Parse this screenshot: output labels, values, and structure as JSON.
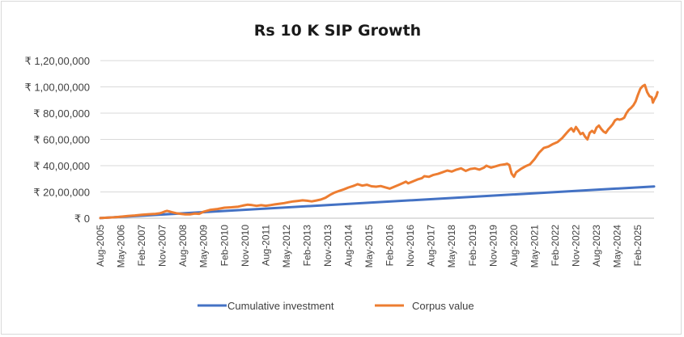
{
  "chart_data": {
    "type": "line",
    "title": "Rs 10 K SIP Growth",
    "xlabel": "",
    "ylabel": "",
    "ylim": [
      0,
      12000000
    ],
    "y_ticks": [
      {
        "value": 0,
        "label": "₹ 0"
      },
      {
        "value": 2000000,
        "label": "₹ 20,00,000"
      },
      {
        "value": 4000000,
        "label": "₹ 40,00,000"
      },
      {
        "value": 6000000,
        "label": "₹ 60,00,000"
      },
      {
        "value": 8000000,
        "label": "₹ 80,00,000"
      },
      {
        "value": 10000000,
        "label": "₹ 1,00,00,000"
      },
      {
        "value": 12000000,
        "label": "₹ 1,20,00,000"
      }
    ],
    "x_ticks": [
      "Aug-2005",
      "May-2006",
      "Feb-2007",
      "Nov-2007",
      "Aug-2008",
      "May-2009",
      "Feb-2010",
      "Nov-2010",
      "Aug-2011",
      "May-2012",
      "Feb-2013",
      "Nov-2013",
      "Aug-2014",
      "May-2015",
      "Feb-2016",
      "Nov-2016",
      "Aug-2017",
      "May-2018",
      "Feb-2019",
      "Nov-2019",
      "Aug-2020",
      "May-2021",
      "Feb-2022",
      "Nov-2022",
      "Aug-2023",
      "May-2024",
      "Feb-2025"
    ],
    "x_range_months": [
      0,
      241
    ],
    "legend_position": "bottom",
    "series": [
      {
        "name": "Cumulative investment",
        "color": "#4472c4",
        "points": [
          [
            0,
            10000
          ],
          [
            241,
            2420000
          ]
        ]
      },
      {
        "name": "Corpus value",
        "color": "#ed7d31",
        "points": [
          [
            0,
            10000
          ],
          [
            6,
            65000
          ],
          [
            9,
            120000
          ],
          [
            12,
            170000
          ],
          [
            15,
            210000
          ],
          [
            18,
            260000
          ],
          [
            21,
            300000
          ],
          [
            24,
            330000
          ],
          [
            26,
            380000
          ],
          [
            27,
            440000
          ],
          [
            28,
            510000
          ],
          [
            29,
            560000
          ],
          [
            30,
            520000
          ],
          [
            31,
            470000
          ],
          [
            33,
            380000
          ],
          [
            35,
            330000
          ],
          [
            37,
            290000
          ],
          [
            39,
            290000
          ],
          [
            41,
            350000
          ],
          [
            43,
            330000
          ],
          [
            45,
            500000
          ],
          [
            48,
            640000
          ],
          [
            51,
            700000
          ],
          [
            54,
            800000
          ],
          [
            57,
            830000
          ],
          [
            60,
            880000
          ],
          [
            62,
            960000
          ],
          [
            64,
            1030000
          ],
          [
            66,
            1000000
          ],
          [
            68,
            940000
          ],
          [
            70,
            990000
          ],
          [
            72,
            950000
          ],
          [
            74,
            1000000
          ],
          [
            76,
            1050000
          ],
          [
            78,
            1100000
          ],
          [
            80,
            1150000
          ],
          [
            82,
            1220000
          ],
          [
            84,
            1280000
          ],
          [
            86,
            1320000
          ],
          [
            88,
            1360000
          ],
          [
            90,
            1330000
          ],
          [
            92,
            1280000
          ],
          [
            94,
            1350000
          ],
          [
            96,
            1420000
          ],
          [
            98,
            1560000
          ],
          [
            100,
            1780000
          ],
          [
            102,
            1960000
          ],
          [
            104,
            2080000
          ],
          [
            106,
            2200000
          ],
          [
            108,
            2340000
          ],
          [
            110,
            2450000
          ],
          [
            111,
            2520000
          ],
          [
            112,
            2590000
          ],
          [
            114,
            2480000
          ],
          [
            116,
            2550000
          ],
          [
            118,
            2430000
          ],
          [
            120,
            2400000
          ],
          [
            122,
            2450000
          ],
          [
            124,
            2350000
          ],
          [
            126,
            2250000
          ],
          [
            128,
            2400000
          ],
          [
            130,
            2550000
          ],
          [
            132,
            2700000
          ],
          [
            133,
            2780000
          ],
          [
            134,
            2650000
          ],
          [
            136,
            2800000
          ],
          [
            138,
            2950000
          ],
          [
            140,
            3050000
          ],
          [
            141,
            3200000
          ],
          [
            143,
            3150000
          ],
          [
            145,
            3300000
          ],
          [
            147,
            3380000
          ],
          [
            149,
            3500000
          ],
          [
            151,
            3630000
          ],
          [
            153,
            3550000
          ],
          [
            155,
            3700000
          ],
          [
            157,
            3800000
          ],
          [
            159,
            3600000
          ],
          [
            161,
            3750000
          ],
          [
            163,
            3800000
          ],
          [
            165,
            3700000
          ],
          [
            167,
            3850000
          ],
          [
            168,
            4000000
          ],
          [
            170,
            3850000
          ],
          [
            172,
            3950000
          ],
          [
            174,
            4050000
          ],
          [
            176,
            4100000
          ],
          [
            177,
            4150000
          ],
          [
            178,
            4050000
          ],
          [
            179,
            3400000
          ],
          [
            180,
            3150000
          ],
          [
            181,
            3500000
          ],
          [
            183,
            3750000
          ],
          [
            185,
            3950000
          ],
          [
            187,
            4100000
          ],
          [
            189,
            4500000
          ],
          [
            191,
            5000000
          ],
          [
            193,
            5350000
          ],
          [
            195,
            5450000
          ],
          [
            197,
            5650000
          ],
          [
            199,
            5800000
          ],
          [
            201,
            6100000
          ],
          [
            203,
            6500000
          ],
          [
            204,
            6700000
          ],
          [
            205,
            6850000
          ],
          [
            206,
            6600000
          ],
          [
            207,
            6950000
          ],
          [
            208,
            6700000
          ],
          [
            209,
            6400000
          ],
          [
            210,
            6500000
          ],
          [
            211,
            6200000
          ],
          [
            212,
            6000000
          ],
          [
            213,
            6500000
          ],
          [
            214,
            6650000
          ],
          [
            215,
            6500000
          ],
          [
            216,
            6900000
          ],
          [
            217,
            7050000
          ],
          [
            218,
            6800000
          ],
          [
            219,
            6600000
          ],
          [
            220,
            6500000
          ],
          [
            221,
            6750000
          ],
          [
            222,
            6950000
          ],
          [
            223,
            7150000
          ],
          [
            224,
            7450000
          ],
          [
            225,
            7550000
          ],
          [
            226,
            7500000
          ],
          [
            227,
            7550000
          ],
          [
            228,
            7650000
          ],
          [
            229,
            8000000
          ],
          [
            230,
            8250000
          ],
          [
            231,
            8400000
          ],
          [
            232,
            8600000
          ],
          [
            233,
            8900000
          ],
          [
            234,
            9400000
          ],
          [
            235,
            9850000
          ],
          [
            236,
            10050000
          ],
          [
            237,
            10150000
          ],
          [
            238,
            9600000
          ],
          [
            239,
            9300000
          ],
          [
            240,
            9200000
          ],
          [
            240.5,
            8800000
          ],
          [
            241,
            9000000
          ],
          [
            242,
            9300000
          ],
          [
            242.5,
            9600000
          ]
        ]
      }
    ]
  }
}
